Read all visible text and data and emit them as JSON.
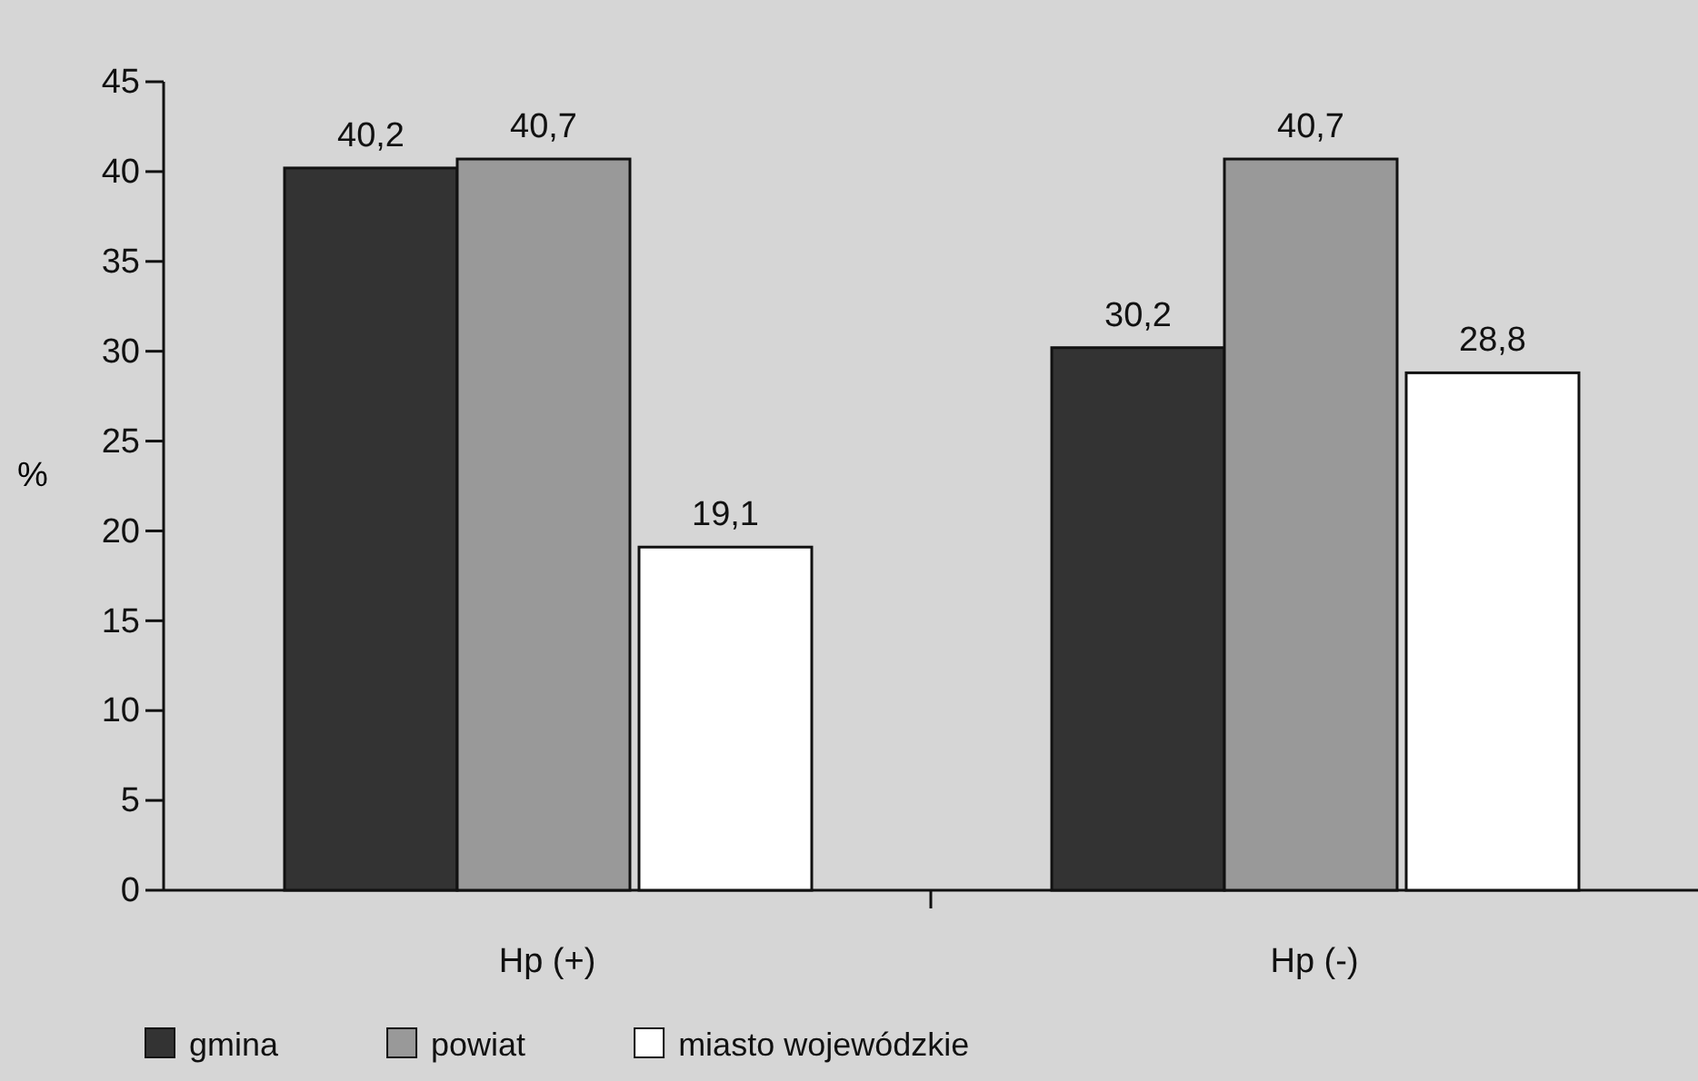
{
  "chart_data": {
    "type": "bar",
    "ylabel": "%",
    "categories": [
      "Hp (+)",
      "Hp (-)"
    ],
    "series": [
      {
        "name": "gmina",
        "color": "#333333",
        "values": [
          40.2,
          30.2
        ],
        "value_labels": [
          "40,2",
          "30,2"
        ]
      },
      {
        "name": "powiat",
        "color": "#999999",
        "values": [
          40.7,
          40.7
        ],
        "value_labels": [
          "40,7",
          "40,7"
        ]
      },
      {
        "name": "miasto wojewódzkie",
        "color": "#ffffff",
        "values": [
          19.1,
          28.8
        ],
        "value_labels": [
          "19,1",
          "28,8"
        ]
      }
    ],
    "ylim": [
      0,
      45
    ],
    "yticks": [
      0,
      5,
      10,
      15,
      20,
      25,
      30,
      35,
      40,
      45
    ],
    "grid": false,
    "legend": "bottom left"
  }
}
